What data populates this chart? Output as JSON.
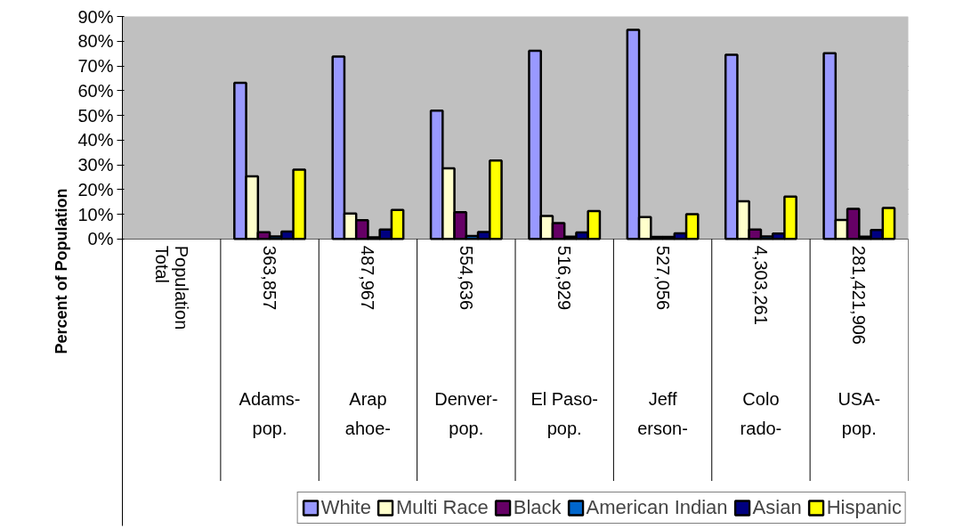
{
  "chart_data": {
    "type": "bar",
    "ylabel": "Percent of Population",
    "categories": [
      "Total Population",
      "363,857\nAdams-\npop.",
      "487,967\nArap\nahoe-",
      "554,636\nDenver-\npop.",
      "516,929\nEl Paso-\npop.",
      "527,056\nJeff\nerson-",
      "4,303,261\nColo\nrado-",
      "281,421,906\nUSA-\npop."
    ],
    "series": [
      {
        "name": "White",
        "color": "#9999ff",
        "values": [
          null,
          63.2,
          73.8,
          51.9,
          76.1,
          84.6,
          74.5,
          75.1
        ]
      },
      {
        "name": "Multi Race",
        "color": "#ffffcc",
        "values": [
          null,
          25.3,
          10.3,
          28.6,
          9.3,
          8.8,
          15.2,
          7.7
        ]
      },
      {
        "name": "Black",
        "color": "#660066",
        "values": [
          null,
          2.7,
          7.6,
          10.8,
          6.4,
          0.8,
          3.8,
          12.2
        ]
      },
      {
        "name": "American Indian",
        "color": "#0066cc",
        "values": [
          null,
          1.0,
          0.6,
          1.2,
          0.9,
          0.8,
          1.0,
          0.9
        ]
      },
      {
        "name": "Asian",
        "color": "#000080",
        "values": [
          null,
          3.0,
          3.8,
          2.8,
          2.6,
          2.3,
          2.2,
          3.6
        ]
      },
      {
        "name": "Hispanic",
        "color": "#ffff00",
        "values": [
          null,
          28.0,
          11.7,
          31.7,
          11.3,
          10.0,
          17.1,
          12.5
        ]
      }
    ],
    "ylim": [
      0,
      90
    ],
    "yticks": [
      {
        "value": 0,
        "label": "0%"
      },
      {
        "value": 10,
        "label": "10%"
      },
      {
        "value": 20,
        "label": "20%"
      },
      {
        "value": 30,
        "label": "30%"
      },
      {
        "value": 40,
        "label": "40%"
      },
      {
        "value": 50,
        "label": "50%"
      },
      {
        "value": 60,
        "label": "60%"
      },
      {
        "value": 70,
        "label": "70%"
      },
      {
        "value": 80,
        "label": "80%"
      },
      {
        "value": 90,
        "label": "90%"
      }
    ],
    "grid": "y",
    "legend": "bottom"
  }
}
